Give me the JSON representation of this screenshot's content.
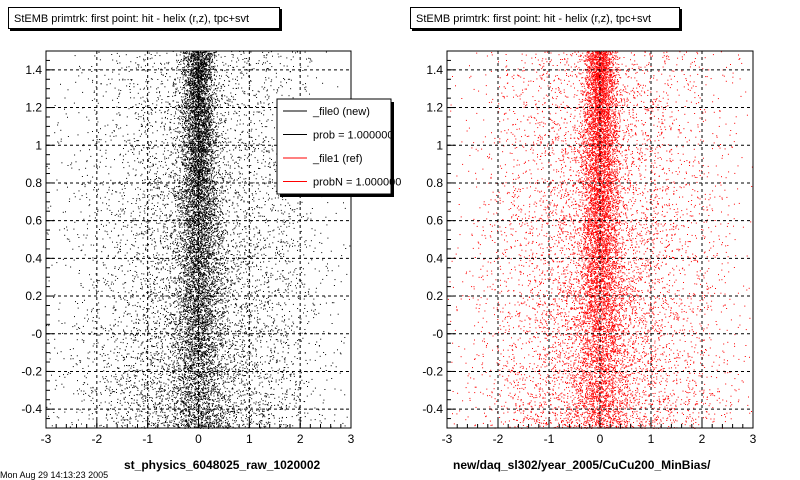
{
  "chart_data": [
    {
      "type": "scatter",
      "title": "StEMB primtrk: first point: hit - helix (r,z), tpc+svt",
      "xlabel": "st_physics_6048025_raw_1020002",
      "ylabel": "",
      "xlim": [
        -3,
        3
      ],
      "ylim": [
        -0.5,
        1.5
      ],
      "x_ticks": [
        "-3",
        "-2",
        "-1",
        "0",
        "1",
        "2",
        "3"
      ],
      "y_ticks": [
        "-0.4",
        "-0.2",
        "-0",
        "0.2",
        "0.4",
        "0.6",
        "0.8",
        "1",
        "1.2",
        "1.4"
      ],
      "grid": true,
      "marker_color": "#000000",
      "distribution": {
        "x_center": 0,
        "x_core_spread": 0.25,
        "x_halo_spread": 1.2
      },
      "legend": {
        "placement": "top-right",
        "entries": [
          {
            "label": "_file0 (new)",
            "color": "#000000"
          },
          {
            "label": "prob = 1.000000",
            "color": "#000000"
          },
          {
            "label": "_file1 (ref)",
            "color": "#ff0000"
          },
          {
            "label": "probN = 1.000000",
            "color": "#ff0000"
          }
        ]
      }
    },
    {
      "type": "scatter",
      "title": "StEMB primtrk: first point: hit - helix (r,z), tpc+svt",
      "xlabel": "new/daq_sl302/year_2005/CuCu200_MinBias/",
      "ylabel": "",
      "xlim": [
        -3,
        3
      ],
      "ylim": [
        -0.5,
        1.5
      ],
      "x_ticks": [
        "-3",
        "-2",
        "-1",
        "0",
        "1",
        "2",
        "3"
      ],
      "y_ticks": [
        "-0.4",
        "-0.2",
        "-0",
        "0.2",
        "0.4",
        "0.6",
        "0.8",
        "1",
        "1.2",
        "1.4"
      ],
      "grid": true,
      "marker_color": "#ff0000",
      "distribution": {
        "x_center": 0,
        "x_core_spread": 0.25,
        "x_halo_spread": 1.2
      }
    }
  ],
  "footer_text": "Mon Aug 29 14:13:23 2005"
}
